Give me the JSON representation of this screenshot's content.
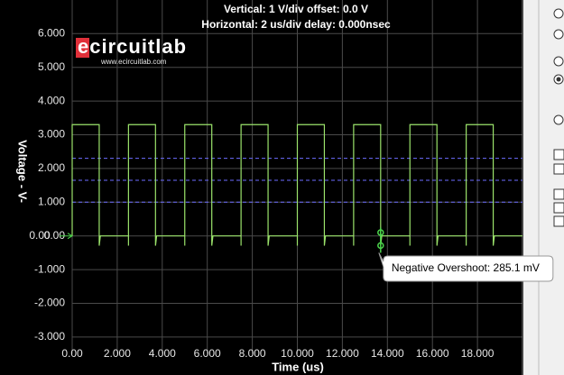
{
  "chart_data": {
    "type": "line",
    "title": "Vertical: 1  V/div  offset: 0.0 V",
    "subtitle": "Horizontal: 2 us/div  delay: 0.000nsec",
    "logo": "ecircuitlab",
    "logo_url": "www.ecircuitlab.com",
    "x_label": "Time  (us)",
    "y_label": "Voltage  -  V-",
    "zero_marker": "0.00",
    "xlim": [
      0,
      20
    ],
    "ylim": [
      -3.5,
      6.5
    ],
    "xticks": [
      {
        "value": 0,
        "label": "0.00"
      },
      {
        "value": 2,
        "label": "2.000"
      },
      {
        "value": 4,
        "label": "4.000"
      },
      {
        "value": 6,
        "label": "6.000"
      },
      {
        "value": 8,
        "label": "8.000"
      },
      {
        "value": 10,
        "label": "10.000"
      },
      {
        "value": 12,
        "label": "12.000"
      },
      {
        "value": 14,
        "label": "14.000"
      },
      {
        "value": 16,
        "label": "16.000"
      },
      {
        "value": 18,
        "label": "18.000"
      }
    ],
    "yticks": [
      {
        "value": 6,
        "label": "6.000"
      },
      {
        "value": 5,
        "label": "5.000"
      },
      {
        "value": 4,
        "label": "4.000"
      },
      {
        "value": 3,
        "label": "3.000"
      },
      {
        "value": 2,
        "label": "2.000"
      },
      {
        "value": 1,
        "label": "1.000"
      },
      {
        "value": 0,
        "label": "0.00"
      },
      {
        "value": -1,
        "label": "-1.000"
      },
      {
        "value": -2,
        "label": "-2.000"
      },
      {
        "value": -3,
        "label": "-3.000"
      }
    ],
    "grid": true,
    "reference_lines": [
      {
        "value": 2.3,
        "color": "#6b6bff"
      },
      {
        "value": 1.65,
        "color": "#6b6bff"
      },
      {
        "value": 1.0,
        "color": "#6b6bff"
      }
    ],
    "series": [
      {
        "name": "Voltage",
        "color": "#9be36b",
        "x": [
          0,
          0,
          1.2,
          1.2,
          1.25,
          2.5,
          2.5,
          2.5,
          3.7,
          3.7,
          3.75,
          5,
          5,
          5,
          6.2,
          6.2,
          6.25,
          7.5,
          7.5,
          7.5,
          8.7,
          8.7,
          8.75,
          10,
          10,
          10,
          11.2,
          11.2,
          11.25,
          12.5,
          12.5,
          12.5,
          13.7,
          13.7,
          13.75,
          15,
          15,
          15,
          16.2,
          16.2,
          16.25,
          17.5,
          17.5,
          17.5,
          18.7,
          18.7,
          18.75,
          20
        ],
        "values": [
          0,
          3.3,
          3.3,
          -0.29,
          0,
          0,
          -0.29,
          3.3,
          3.3,
          -0.29,
          0,
          0,
          -0.29,
          3.3,
          3.3,
          -0.29,
          0,
          0,
          -0.29,
          3.3,
          3.3,
          -0.29,
          0,
          0,
          -0.29,
          3.3,
          3.3,
          -0.29,
          0,
          0,
          -0.29,
          3.3,
          3.3,
          -0.29,
          0,
          0,
          -0.29,
          3.3,
          3.3,
          -0.29,
          0,
          0,
          -0.29,
          3.3,
          3.3,
          -0.29,
          0,
          0
        ]
      }
    ],
    "annotation": {
      "text": "Negative Overshoot: 285.1 mV",
      "x": 13.7,
      "y": -0.2851
    }
  }
}
